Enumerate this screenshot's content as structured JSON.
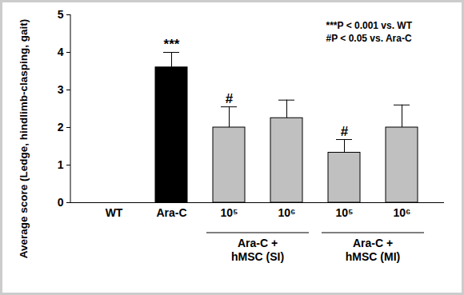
{
  "chart_data": {
    "type": "bar",
    "y_label": "Average score (Ledge, hindlimb-clasping, gait)",
    "categories": [
      "WT",
      "Ara-C",
      "10⁵",
      "10⁶",
      "10⁵",
      "10⁶"
    ],
    "group_labels": [
      null,
      null,
      "Ara-C + hMSC (SI)",
      "Ara-C + hMSC (SI)",
      "Ara-C + hMSC (MI)",
      "Ara-C + hMSC (MI)"
    ],
    "values": [
      0,
      3.6,
      2.0,
      2.25,
      1.33,
      2.0
    ],
    "errors": [
      null,
      0.4,
      0.55,
      0.48,
      0.35,
      0.6
    ],
    "significance": [
      null,
      "***",
      "#",
      null,
      "#",
      null
    ],
    "annotations": [
      "***P < 0.001 vs. WT",
      "#P < 0.05 vs. Ara-C"
    ],
    "colors": [
      "#c0c0c0",
      "#000000",
      "#c0c0c0",
      "#c0c0c0",
      "#c0c0c0",
      "#c0c0c0"
    ],
    "ylim": [
      0,
      5
    ],
    "yticks": [
      0,
      1,
      2,
      3,
      4,
      5
    ]
  }
}
